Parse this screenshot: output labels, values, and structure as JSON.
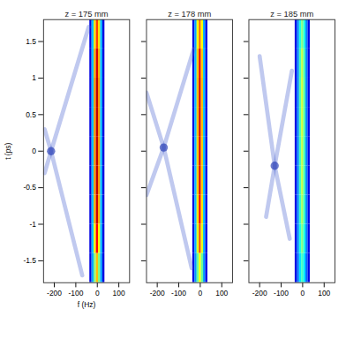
{
  "chart_data": [
    {
      "type": "heatmap",
      "title": "z = 175 mm",
      "xlabel": "f (Hz)",
      "ylabel": "t (ps)",
      "xlim": [
        -250,
        150
      ],
      "xticks": [
        -200,
        -100,
        0,
        100
      ],
      "ylim": [
        -1.8,
        1.8
      ],
      "yticks": [
        1.5,
        1,
        0.5,
        0,
        -0.5,
        -1,
        -1.5
      ],
      "tick_labels": true,
      "color_range": [
        0,
        1
      ],
      "cell_x": [
        -30,
        -20,
        -10,
        0,
        10,
        20,
        30
      ],
      "cell_width": 10,
      "cell_y": [
        1.6,
        1.2,
        0.8,
        0.4,
        0,
        -0.4,
        -0.8,
        -1.2,
        -1.6
      ],
      "cell_height": 0.4,
      "cells": [
        [
          0.15,
          0.35,
          0.62,
          0.75,
          0.62,
          0.35,
          0.15
        ],
        [
          0.15,
          0.35,
          0.66,
          0.86,
          0.66,
          0.35,
          0.15
        ],
        [
          0.15,
          0.35,
          0.68,
          0.9,
          0.68,
          0.35,
          0.15
        ],
        [
          0.15,
          0.35,
          0.68,
          0.9,
          0.68,
          0.35,
          0.15
        ],
        [
          0.15,
          0.35,
          0.68,
          0.9,
          0.68,
          0.35,
          0.15
        ],
        [
          0.15,
          0.35,
          0.68,
          0.9,
          0.68,
          0.35,
          0.15
        ],
        [
          0.15,
          0.35,
          0.66,
          0.88,
          0.66,
          0.35,
          0.15
        ],
        [
          0.15,
          0.35,
          0.6,
          0.8,
          0.6,
          0.35,
          0.15
        ],
        [
          0.15,
          0.33,
          0.5,
          0.65,
          0.5,
          0.33,
          0.15
        ]
      ],
      "series": [
        {
          "type": "line",
          "color": "#4a63d0",
          "x": [
            -245,
            -215,
            -40
          ],
          "y": [
            -0.3,
            0,
            1.7
          ]
        },
        {
          "type": "line",
          "color": "#4a63d0",
          "x": [
            -245,
            -215,
            -70
          ],
          "y": [
            0.3,
            0,
            -1.7
          ]
        },
        {
          "type": "scatter",
          "color": "#2f45b8",
          "x": [
            -215
          ],
          "y": [
            0
          ]
        }
      ]
    },
    {
      "type": "heatmap",
      "title": "z = 178 mm",
      "xlim": [
        -250,
        150
      ],
      "xticks": [
        -200,
        -100,
        0,
        100
      ],
      "ylim": [
        -1.8,
        1.8
      ],
      "yticks": [
        1.5,
        1,
        0.5,
        0,
        -0.5,
        -1,
        -1.5
      ],
      "tick_labels": "x",
      "color_range": [
        0,
        1
      ],
      "cell_x": [
        -30,
        -20,
        -10,
        0,
        10,
        20,
        30
      ],
      "cell_width": 10,
      "cell_y": [
        1.6,
        1.2,
        0.8,
        0.4,
        0,
        -0.4,
        -0.8,
        -1.2,
        -1.6
      ],
      "cell_height": 0.4,
      "cells": [
        [
          0.15,
          0.33,
          0.6,
          0.72,
          0.6,
          0.33,
          0.15
        ],
        [
          0.15,
          0.35,
          0.64,
          0.82,
          0.64,
          0.35,
          0.15
        ],
        [
          0.15,
          0.35,
          0.65,
          0.85,
          0.65,
          0.35,
          0.15
        ],
        [
          0.15,
          0.35,
          0.65,
          0.85,
          0.65,
          0.35,
          0.15
        ],
        [
          0.15,
          0.35,
          0.64,
          0.84,
          0.64,
          0.35,
          0.15
        ],
        [
          0.15,
          0.35,
          0.64,
          0.84,
          0.64,
          0.35,
          0.15
        ],
        [
          0.15,
          0.35,
          0.62,
          0.8,
          0.62,
          0.35,
          0.15
        ],
        [
          0.15,
          0.34,
          0.58,
          0.74,
          0.58,
          0.34,
          0.15
        ],
        [
          0.15,
          0.32,
          0.48,
          0.6,
          0.48,
          0.32,
          0.15
        ]
      ],
      "series": [
        {
          "type": "line",
          "color": "#4a63d0",
          "x": [
            -250,
            -170,
            -30
          ],
          "y": [
            -0.6,
            0.05,
            1.4
          ]
        },
        {
          "type": "line",
          "color": "#4a63d0",
          "x": [
            -250,
            -170,
            -40
          ],
          "y": [
            0.8,
            0.05,
            -1.6
          ]
        },
        {
          "type": "scatter",
          "color": "#2f45b8",
          "x": [
            -170
          ],
          "y": [
            0.05
          ]
        }
      ]
    },
    {
      "type": "heatmap",
      "title": "z = 185 mm",
      "xlim": [
        -250,
        150
      ],
      "xticks": [
        -200,
        -100,
        0,
        100
      ],
      "ylim": [
        -1.8,
        1.8
      ],
      "yticks": [
        1.5,
        1,
        0.5,
        0,
        -0.5,
        -1,
        -1.5
      ],
      "tick_labels": "x",
      "color_range": [
        0,
        1
      ],
      "cell_x": [
        -30,
        -20,
        -10,
        0,
        10,
        20,
        30
      ],
      "cell_width": 10,
      "cell_y": [
        1.6,
        1.2,
        0.8,
        0.4,
        0,
        -0.4,
        -0.8,
        -1.2,
        -1.6
      ],
      "cell_height": 0.4,
      "cells": [
        [
          0.15,
          0.3,
          0.42,
          0.5,
          0.42,
          0.3,
          0.15
        ],
        [
          0.15,
          0.3,
          0.45,
          0.55,
          0.45,
          0.3,
          0.15
        ],
        [
          0.15,
          0.3,
          0.46,
          0.56,
          0.46,
          0.3,
          0.15
        ],
        [
          0.15,
          0.3,
          0.46,
          0.56,
          0.46,
          0.3,
          0.15
        ],
        [
          0.15,
          0.3,
          0.45,
          0.55,
          0.45,
          0.3,
          0.15
        ],
        [
          0.15,
          0.3,
          0.45,
          0.55,
          0.45,
          0.3,
          0.15
        ],
        [
          0.15,
          0.3,
          0.44,
          0.53,
          0.44,
          0.3,
          0.15
        ],
        [
          0.15,
          0.3,
          0.42,
          0.5,
          0.42,
          0.3,
          0.15
        ],
        [
          0.15,
          0.28,
          0.38,
          0.45,
          0.38,
          0.28,
          0.15
        ]
      ],
      "series": [
        {
          "type": "line",
          "color": "#4a63d0",
          "x": [
            -200,
            -130,
            -60
          ],
          "y": [
            1.3,
            -0.2,
            -1.2
          ]
        },
        {
          "type": "line",
          "color": "#4a63d0",
          "x": [
            -170,
            -130,
            -50
          ],
          "y": [
            -0.9,
            -0.2,
            1.1
          ]
        },
        {
          "type": "scatter",
          "color": "#2f45b8",
          "x": [
            -130
          ],
          "y": [
            -0.2
          ]
        }
      ]
    }
  ]
}
